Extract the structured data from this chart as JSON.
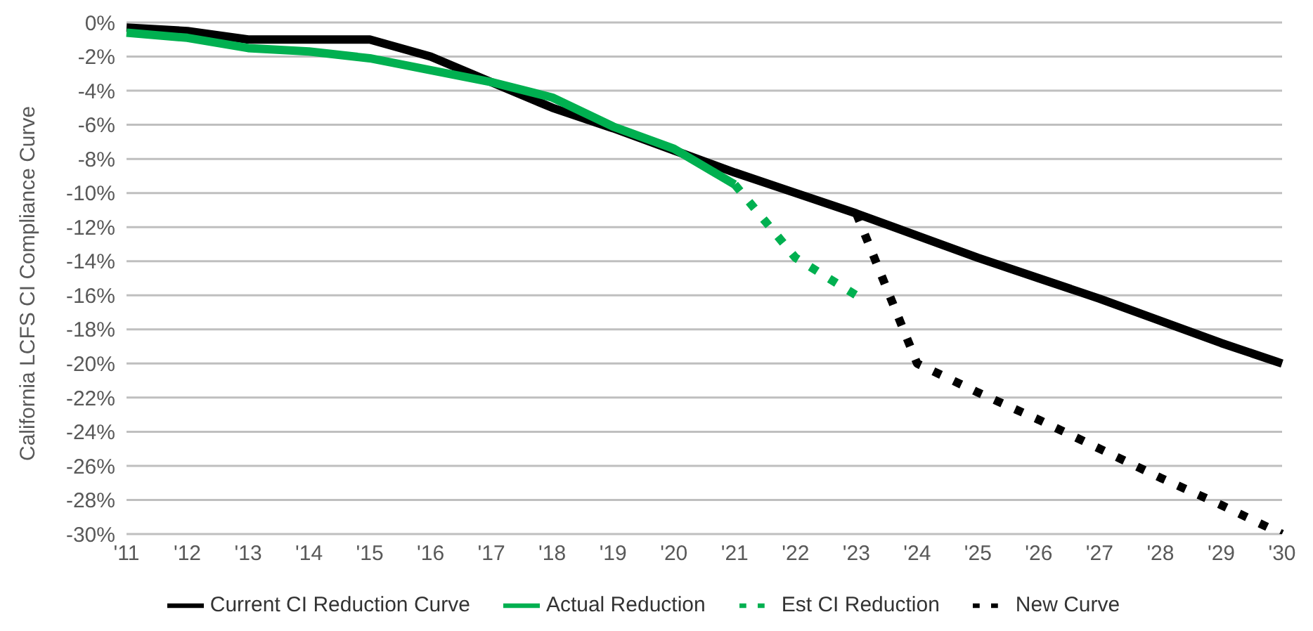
{
  "chart_data": {
    "type": "line",
    "ylabel": "California LCFS CI Compliance Curve",
    "categories": [
      "'11",
      "'12",
      "'13",
      "'14",
      "'15",
      "'16",
      "'17",
      "'18",
      "'19",
      "'20",
      "'21",
      "'22",
      "'23",
      "'24",
      "'25",
      "'26",
      "'27",
      "'28",
      "'29",
      "'30"
    ],
    "series": [
      {
        "name": "Current CI Reduction Curve",
        "color": "#000000",
        "line_style": "solid",
        "values": [
          -0.3,
          -0.5,
          -1,
          -1,
          -1,
          -2,
          -3.5,
          -5,
          -6.2,
          -7.5,
          -8.8,
          -10,
          -11.2,
          -12.5,
          -13.8,
          -15,
          -16.2,
          -17.5,
          -18.8,
          -20
        ]
      },
      {
        "name": "Actual Reduction",
        "color": "#00b050",
        "line_style": "solid",
        "values": [
          -0.6,
          -0.9,
          -1.5,
          -1.7,
          -2.1,
          -2.8,
          -3.5,
          -4.4,
          -6.1,
          -7.4,
          -9.5,
          null,
          null,
          null,
          null,
          null,
          null,
          null,
          null,
          null
        ]
      },
      {
        "name": "Est CI Reduction",
        "color": "#00b050",
        "line_style": "dotted",
        "values": [
          null,
          null,
          null,
          null,
          null,
          null,
          null,
          null,
          null,
          null,
          -9.5,
          -13.8,
          -16,
          null,
          null,
          null,
          null,
          null,
          null,
          null
        ]
      },
      {
        "name": "New Curve",
        "color": "#000000",
        "line_style": "dotted",
        "values": [
          null,
          null,
          null,
          null,
          null,
          null,
          null,
          null,
          null,
          null,
          null,
          null,
          -11.2,
          -20,
          -21.7,
          -23.3,
          -25,
          -26.7,
          -28.3,
          -30
        ]
      }
    ],
    "ylim": [
      -30,
      0
    ],
    "yticks": [
      {
        "value": 0,
        "label": "0%"
      },
      {
        "value": -2,
        "label": "-2%"
      },
      {
        "value": -4,
        "label": "-4%"
      },
      {
        "value": -6,
        "label": "-6%"
      },
      {
        "value": -8,
        "label": "-8%"
      },
      {
        "value": -10,
        "label": "-10%"
      },
      {
        "value": -12,
        "label": "-12%"
      },
      {
        "value": -14,
        "label": "-14%"
      },
      {
        "value": -16,
        "label": "-16%"
      },
      {
        "value": -18,
        "label": "-18%"
      },
      {
        "value": -20,
        "label": "-20%"
      },
      {
        "value": -22,
        "label": "-22%"
      },
      {
        "value": -24,
        "label": "-24%"
      },
      {
        "value": -26,
        "label": "-26%"
      },
      {
        "value": -28,
        "label": "-28%"
      },
      {
        "value": -30,
        "label": "-30%"
      }
    ],
    "grid": "y",
    "legend": "bottom",
    "marker": "none"
  }
}
